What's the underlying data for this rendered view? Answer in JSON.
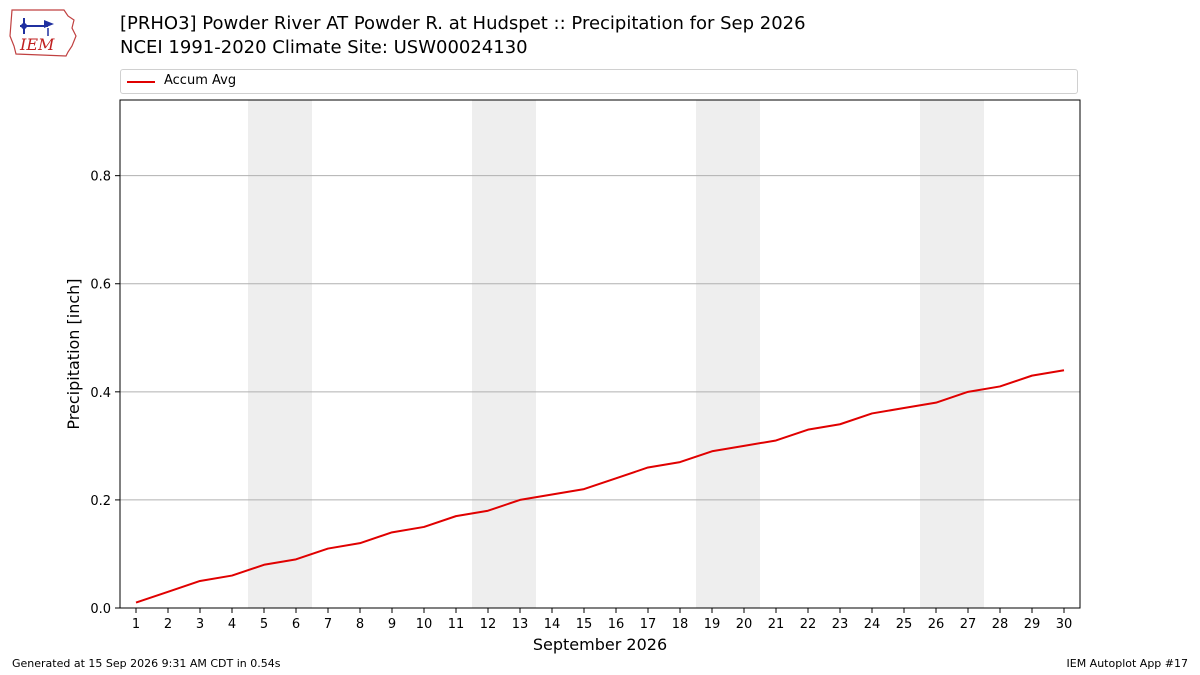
{
  "header": {
    "title_line1": "[PRHO3] Powder River  AT Powder R. at Hudspet :: Precipitation for Sep 2026",
    "title_line2": "NCEI 1991-2020 Climate Site: USW00024130"
  },
  "logo": {
    "text": "IEM",
    "icon": "iem-logo-icon"
  },
  "footer": {
    "generated": "Generated at 15 Sep 2026 9:31 AM CDT in 0.54s",
    "app": "IEM Autoplot App #17"
  },
  "chart_data": {
    "type": "line",
    "xlabel": "September 2026",
    "ylabel": "Precipitation [inch]",
    "x": [
      1,
      2,
      3,
      4,
      5,
      6,
      7,
      8,
      9,
      10,
      11,
      12,
      13,
      14,
      15,
      16,
      17,
      18,
      19,
      20,
      21,
      22,
      23,
      24,
      25,
      26,
      27,
      28,
      29,
      30
    ],
    "xlim": [
      0.5,
      30.5
    ],
    "ylim": [
      0,
      0.94
    ],
    "yticks": [
      0.0,
      0.2,
      0.4,
      0.6,
      0.8
    ],
    "ytick_labels": [
      "0.0",
      "0.2",
      "0.4",
      "0.6",
      "0.8"
    ],
    "grid": "horizontal",
    "weekend_shading": [
      [
        5,
        6
      ],
      [
        12,
        13
      ],
      [
        19,
        20
      ],
      [
        26,
        27
      ]
    ],
    "legend_position": "top",
    "series": [
      {
        "name": "Accum Avg",
        "color": "#e00000",
        "values": [
          0.01,
          0.03,
          0.05,
          0.06,
          0.08,
          0.09,
          0.11,
          0.12,
          0.14,
          0.15,
          0.17,
          0.18,
          0.2,
          0.21,
          0.22,
          0.24,
          0.26,
          0.27,
          0.29,
          0.3,
          0.31,
          0.33,
          0.34,
          0.36,
          0.37,
          0.38,
          0.4,
          0.41,
          0.43,
          0.44
        ]
      }
    ]
  }
}
